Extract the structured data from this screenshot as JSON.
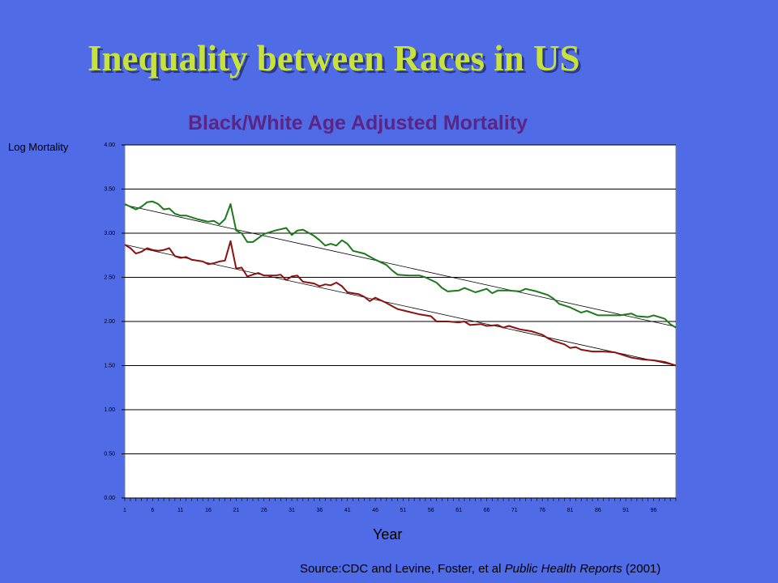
{
  "slide": {
    "title": "Inequality between Races in US",
    "source": {
      "prefix": "Source:CDC and Levine, Foster, et al ",
      "journal": "Public Health Reports",
      "suffix": " (2001)"
    }
  },
  "colors": {
    "background": "#4f6be6",
    "title": "#c8e23a",
    "chart_title": "#5c2585",
    "plot_area": "#ffffff",
    "black_series": "#1a7a1a",
    "white_series": "#8b1010",
    "trend": "#000000"
  },
  "chart_data": {
    "type": "line",
    "title": "Black/White Age Adjusted Mortality",
    "xlabel": "Year",
    "ylabel": "Log Mortality",
    "xlim": [
      1,
      100
    ],
    "ylim": [
      0,
      4
    ],
    "y_ticks": [
      "0.00",
      "0.50",
      "1.00",
      "1.50",
      "2.00",
      "2.50",
      "3.00",
      "3.50",
      "4.00"
    ],
    "x_ticks": [
      1,
      6,
      11,
      16,
      21,
      26,
      31,
      36,
      41,
      46,
      51,
      56,
      61,
      66,
      71,
      76,
      81,
      86,
      91,
      96
    ],
    "grid": "horizontal",
    "series": [
      {
        "points": [
          [
            1,
            3.33
          ],
          [
            3,
            3.27
          ],
          [
            4,
            3.3
          ],
          [
            5,
            3.35
          ],
          [
            6,
            3.36
          ],
          [
            7,
            3.33
          ],
          [
            8,
            3.27
          ],
          [
            9,
            3.28
          ],
          [
            10,
            3.22
          ],
          [
            11,
            3.2
          ],
          [
            12,
            3.2
          ],
          [
            14,
            3.16
          ],
          [
            16,
            3.13
          ],
          [
            17,
            3.14
          ],
          [
            18,
            3.1
          ],
          [
            19,
            3.16
          ],
          [
            20,
            3.33
          ],
          [
            21,
            3.03
          ],
          [
            22,
            3.0
          ],
          [
            23,
            2.9
          ],
          [
            24,
            2.9
          ],
          [
            26,
            2.99
          ],
          [
            28,
            3.03
          ],
          [
            30,
            3.06
          ],
          [
            31,
            2.98
          ],
          [
            32,
            3.03
          ],
          [
            33,
            3.04
          ],
          [
            35,
            2.97
          ],
          [
            36,
            2.92
          ],
          [
            37,
            2.86
          ],
          [
            38,
            2.88
          ],
          [
            39,
            2.86
          ],
          [
            40,
            2.92
          ],
          [
            41,
            2.88
          ],
          [
            42,
            2.8
          ],
          [
            44,
            2.77
          ],
          [
            46,
            2.7
          ],
          [
            48,
            2.64
          ],
          [
            49,
            2.58
          ],
          [
            50,
            2.53
          ],
          [
            52,
            2.52
          ],
          [
            54,
            2.52
          ],
          [
            55,
            2.5
          ],
          [
            57,
            2.44
          ],
          [
            58,
            2.38
          ],
          [
            59,
            2.34
          ],
          [
            61,
            2.35
          ],
          [
            62,
            2.38
          ],
          [
            64,
            2.33
          ],
          [
            66,
            2.37
          ],
          [
            67,
            2.32
          ],
          [
            68,
            2.35
          ],
          [
            70,
            2.35
          ],
          [
            72,
            2.34
          ],
          [
            73,
            2.37
          ],
          [
            75,
            2.34
          ],
          [
            77,
            2.3
          ],
          [
            78,
            2.26
          ],
          [
            79,
            2.2
          ],
          [
            81,
            2.16
          ],
          [
            83,
            2.1
          ],
          [
            84,
            2.12
          ],
          [
            86,
            2.07
          ],
          [
            88,
            2.07
          ],
          [
            90,
            2.07
          ],
          [
            92,
            2.09
          ],
          [
            93,
            2.06
          ],
          [
            95,
            2.05
          ],
          [
            96,
            2.07
          ],
          [
            98,
            2.03
          ],
          [
            99,
            1.97
          ],
          [
            100,
            1.93
          ]
        ],
        "trend": [
          [
            1,
            3.32
          ],
          [
            100,
            1.94
          ]
        ]
      },
      {
        "points": [
          [
            1,
            2.87
          ],
          [
            2,
            2.83
          ],
          [
            3,
            2.77
          ],
          [
            4,
            2.79
          ],
          [
            5,
            2.83
          ],
          [
            6,
            2.81
          ],
          [
            7,
            2.8
          ],
          [
            8,
            2.81
          ],
          [
            9,
            2.83
          ],
          [
            10,
            2.74
          ],
          [
            11,
            2.72
          ],
          [
            12,
            2.73
          ],
          [
            13,
            2.7
          ],
          [
            15,
            2.68
          ],
          [
            16,
            2.65
          ],
          [
            17,
            2.66
          ],
          [
            18,
            2.68
          ],
          [
            19,
            2.69
          ],
          [
            20,
            2.91
          ],
          [
            21,
            2.6
          ],
          [
            22,
            2.61
          ],
          [
            23,
            2.51
          ],
          [
            24,
            2.53
          ],
          [
            25,
            2.55
          ],
          [
            26,
            2.52
          ],
          [
            28,
            2.52
          ],
          [
            29,
            2.53
          ],
          [
            30,
            2.47
          ],
          [
            31,
            2.51
          ],
          [
            32,
            2.52
          ],
          [
            33,
            2.45
          ],
          [
            35,
            2.43
          ],
          [
            36,
            2.4
          ],
          [
            37,
            2.42
          ],
          [
            38,
            2.41
          ],
          [
            39,
            2.44
          ],
          [
            40,
            2.4
          ],
          [
            41,
            2.33
          ],
          [
            43,
            2.31
          ],
          [
            44,
            2.28
          ],
          [
            45,
            2.23
          ],
          [
            46,
            2.27
          ],
          [
            48,
            2.21
          ],
          [
            50,
            2.14
          ],
          [
            52,
            2.11
          ],
          [
            54,
            2.08
          ],
          [
            56,
            2.06
          ],
          [
            57,
            2.0
          ],
          [
            59,
            2.0
          ],
          [
            61,
            1.99
          ],
          [
            62,
            2.0
          ],
          [
            63,
            1.96
          ],
          [
            65,
            1.97
          ],
          [
            66,
            1.95
          ],
          [
            68,
            1.96
          ],
          [
            69,
            1.93
          ],
          [
            70,
            1.95
          ],
          [
            72,
            1.91
          ],
          [
            74,
            1.89
          ],
          [
            76,
            1.85
          ],
          [
            77,
            1.81
          ],
          [
            78,
            1.78
          ],
          [
            80,
            1.74
          ],
          [
            81,
            1.7
          ],
          [
            82,
            1.71
          ],
          [
            83,
            1.68
          ],
          [
            85,
            1.66
          ],
          [
            87,
            1.66
          ],
          [
            89,
            1.65
          ],
          [
            90,
            1.63
          ],
          [
            92,
            1.59
          ],
          [
            94,
            1.57
          ],
          [
            96,
            1.56
          ],
          [
            98,
            1.54
          ],
          [
            100,
            1.5
          ]
        ],
        "trend": [
          [
            1,
            2.87
          ],
          [
            100,
            1.5
          ]
        ]
      }
    ]
  }
}
